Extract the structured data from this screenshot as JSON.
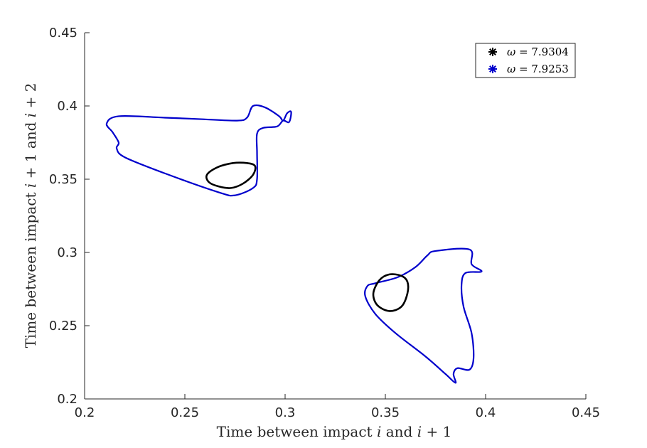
{
  "chart_data": {
    "type": "line",
    "title": "",
    "xlabel": "Time between impact i and i+1",
    "ylabel": "Time between impact i+1 and i+2",
    "xlim": [
      0.2,
      0.45
    ],
    "ylim": [
      0.2,
      0.45
    ],
    "xticks": [
      "0.2",
      "0.25",
      "0.3",
      "0.35",
      "0.4",
      "0.45"
    ],
    "yticks": [
      "0.2",
      "0.25",
      "0.3",
      "0.35",
      "0.4",
      "0.45"
    ],
    "grid": false,
    "legend_position": "top-right",
    "series": [
      {
        "name": "ω = 7.9304",
        "color": "#000000",
        "loops": [
          [
            [
              0.285,
              0.359
            ],
            [
              0.281,
              0.361
            ],
            [
              0.274,
              0.361
            ],
            [
              0.266,
              0.358
            ],
            [
              0.261,
              0.353
            ],
            [
              0.262,
              0.348
            ],
            [
              0.267,
              0.345
            ],
            [
              0.273,
              0.344
            ],
            [
              0.279,
              0.347
            ],
            [
              0.284,
              0.353
            ],
            [
              0.285,
              0.359
            ]
          ],
          [
            [
              0.358,
              0.284
            ],
            [
              0.352,
              0.285
            ],
            [
              0.347,
              0.281
            ],
            [
              0.344,
              0.272
            ],
            [
              0.346,
              0.264
            ],
            [
              0.352,
              0.26
            ],
            [
              0.358,
              0.263
            ],
            [
              0.361,
              0.272
            ],
            [
              0.361,
              0.28
            ],
            [
              0.358,
              0.284
            ]
          ]
        ]
      },
      {
        "name": "ω = 7.9253",
        "color": "#0000cc",
        "loops": [
          [
            [
              0.217,
              0.393
            ],
            [
              0.24,
              0.392
            ],
            [
              0.258,
              0.391
            ],
            [
              0.276,
              0.39
            ],
            [
              0.281,
              0.392
            ],
            [
              0.284,
              0.4
            ],
            [
              0.29,
              0.399
            ],
            [
              0.297,
              0.393
            ],
            [
              0.299,
              0.39
            ],
            [
              0.301,
              0.395
            ],
            [
              0.303,
              0.396
            ],
            [
              0.302,
              0.389
            ],
            [
              0.299,
              0.39
            ],
            [
              0.296,
              0.386
            ],
            [
              0.289,
              0.385
            ],
            [
              0.286,
              0.381
            ],
            [
              0.286,
              0.368
            ],
            [
              0.286,
              0.35
            ],
            [
              0.284,
              0.344
            ],
            [
              0.275,
              0.339
            ],
            [
              0.267,
              0.341
            ],
            [
              0.24,
              0.354
            ],
            [
              0.22,
              0.365
            ],
            [
              0.216,
              0.371
            ],
            [
              0.217,
              0.375
            ],
            [
              0.214,
              0.382
            ],
            [
              0.211,
              0.388
            ],
            [
              0.217,
              0.393
            ]
          ],
          [
            [
              0.392,
              0.302
            ],
            [
              0.375,
              0.301
            ],
            [
              0.371,
              0.298
            ],
            [
              0.365,
              0.29
            ],
            [
              0.356,
              0.283
            ],
            [
              0.345,
              0.279
            ],
            [
              0.341,
              0.277
            ],
            [
              0.34,
              0.27
            ],
            [
              0.345,
              0.258
            ],
            [
              0.355,
              0.245
            ],
            [
              0.37,
              0.229
            ],
            [
              0.38,
              0.217
            ],
            [
              0.385,
              0.211
            ],
            [
              0.384,
              0.217
            ],
            [
              0.386,
              0.221
            ],
            [
              0.392,
              0.22
            ],
            [
              0.394,
              0.228
            ],
            [
              0.393,
              0.245
            ],
            [
              0.389,
              0.263
            ],
            [
              0.388,
              0.278
            ],
            [
              0.39,
              0.286
            ],
            [
              0.398,
              0.287
            ],
            [
              0.393,
              0.292
            ],
            [
              0.392,
              0.302
            ]
          ]
        ]
      }
    ]
  },
  "legend": {
    "entries": [
      {
        "symbol": "ω",
        "value": "7.9304",
        "color": "#000000"
      },
      {
        "symbol": "ω",
        "value": "7.9253",
        "color": "#0000cc"
      }
    ]
  },
  "axis_labels": {
    "x_prefix": "Time between impact ",
    "x_var1": "i",
    "x_mid": " and ",
    "x_var2": "i",
    "x_suffix": " + 1",
    "y_prefix": "Time between impact ",
    "y_var1": "i",
    "y_mid1": " + 1 and ",
    "y_var2": "i",
    "y_suffix": " + 2"
  }
}
